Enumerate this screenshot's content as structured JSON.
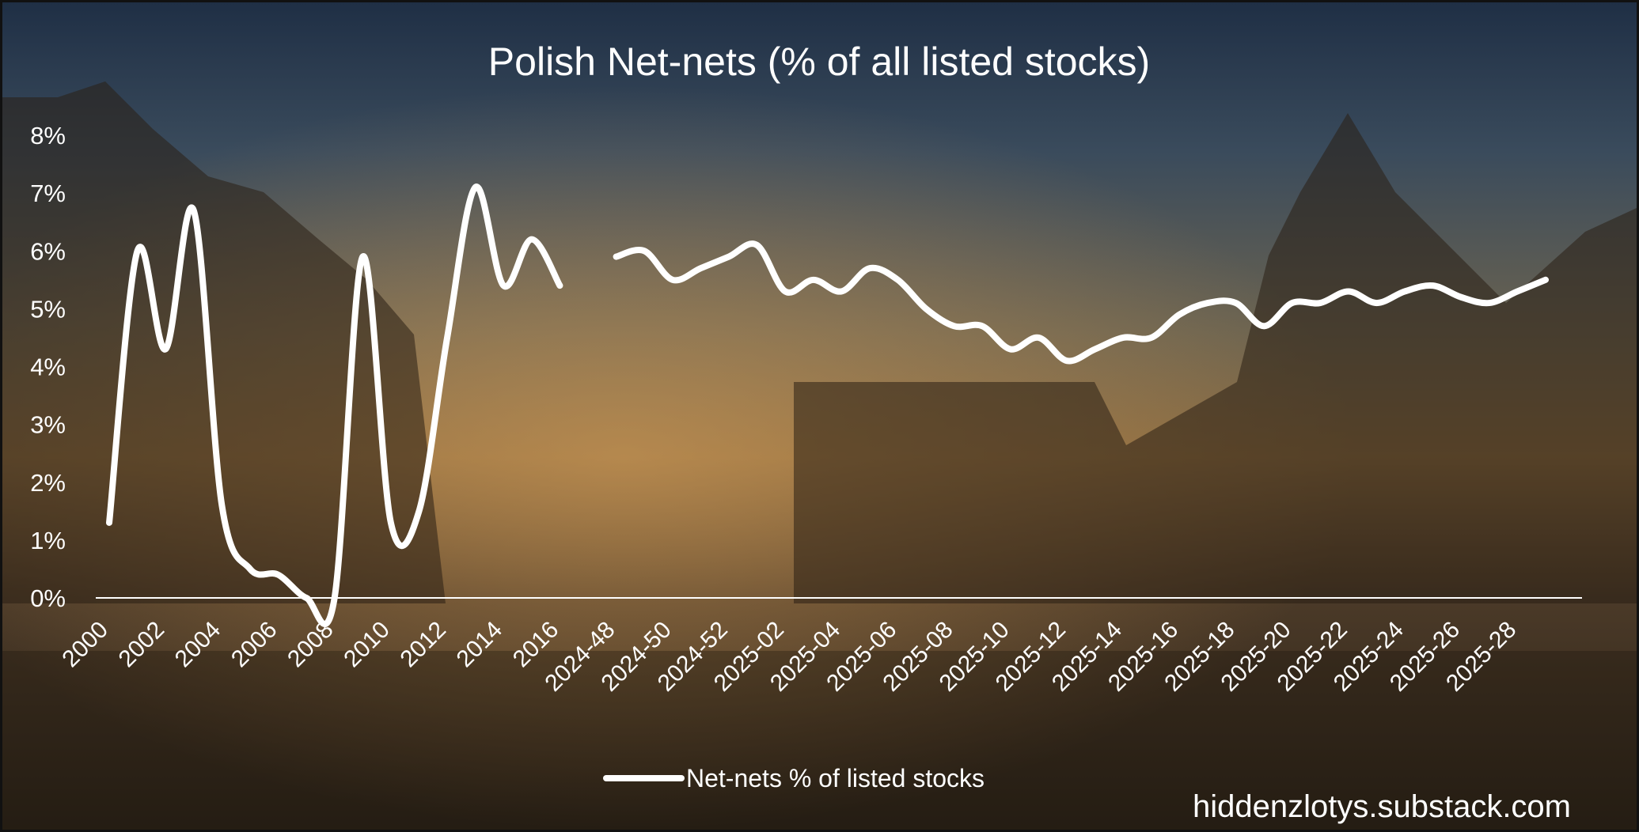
{
  "chart_data": {
    "type": "line",
    "title": "Polish Net-nets (% of all listed stocks)",
    "xlabel": "",
    "ylabel": "",
    "ylim": [
      0,
      8
    ],
    "y_ticks": [
      "0%",
      "1%",
      "2%",
      "3%",
      "4%",
      "5%",
      "6%",
      "7%",
      "8%"
    ],
    "categories": [
      "2000",
      "2001",
      "2002",
      "2003",
      "2004",
      "2005",
      "2006",
      "2007",
      "2008",
      "2009",
      "2010",
      "2011",
      "2012",
      "2013",
      "2014",
      "2015",
      "2016",
      "gap",
      "2024-48",
      "2024-49",
      "2024-50",
      "2024-51",
      "2024-52",
      "2025-01",
      "2025-02",
      "2025-03",
      "2025-04",
      "2025-05",
      "2025-06",
      "2025-07",
      "2025-08",
      "2025-09",
      "2025-10",
      "2025-11",
      "2025-12",
      "2025-13",
      "2025-14",
      "2025-15",
      "2025-16",
      "2025-17",
      "2025-18",
      "2025-19",
      "2025-20",
      "2025-21",
      "2025-22",
      "2025-23",
      "2025-24",
      "2025-25",
      "2025-26",
      "2025-27",
      "2025-28",
      "2025-29"
    ],
    "tick_labels": [
      "2000",
      "2002",
      "2004",
      "2006",
      "2008",
      "2010",
      "2012",
      "2014",
      "2016",
      "2024-48",
      "2024-50",
      "2024-52",
      "2025-02",
      "2025-04",
      "2025-06",
      "2025-08",
      "2025-10",
      "2025-12",
      "2025-14",
      "2025-16",
      "2025-18",
      "2025-20",
      "2025-22",
      "2025-24",
      "2025-26",
      "2025-28"
    ],
    "series": [
      {
        "name": "Net-nets % of listed stocks",
        "color": "#ffffff",
        "values": [
          1.3,
          6.0,
          4.3,
          6.7,
          1.6,
          0.5,
          0.4,
          0.0,
          0.0,
          5.9,
          1.3,
          1.5,
          4.5,
          7.1,
          5.4,
          6.2,
          5.4,
          null,
          5.9,
          6.0,
          5.5,
          5.7,
          5.9,
          6.1,
          5.3,
          5.5,
          5.3,
          5.7,
          5.5,
          5.0,
          4.7,
          4.7,
          4.3,
          4.5,
          4.1,
          4.3,
          4.5,
          4.5,
          4.9,
          5.1,
          5.1,
          4.7,
          5.1,
          5.1,
          5.3,
          5.1,
          5.3,
          5.4,
          5.2,
          5.1,
          5.3,
          5.5
        ]
      }
    ],
    "legend": {
      "position": "bottom-center",
      "label": "Net-nets % of listed stocks"
    }
  },
  "watermark": "hiddenzlotys.substack.com"
}
